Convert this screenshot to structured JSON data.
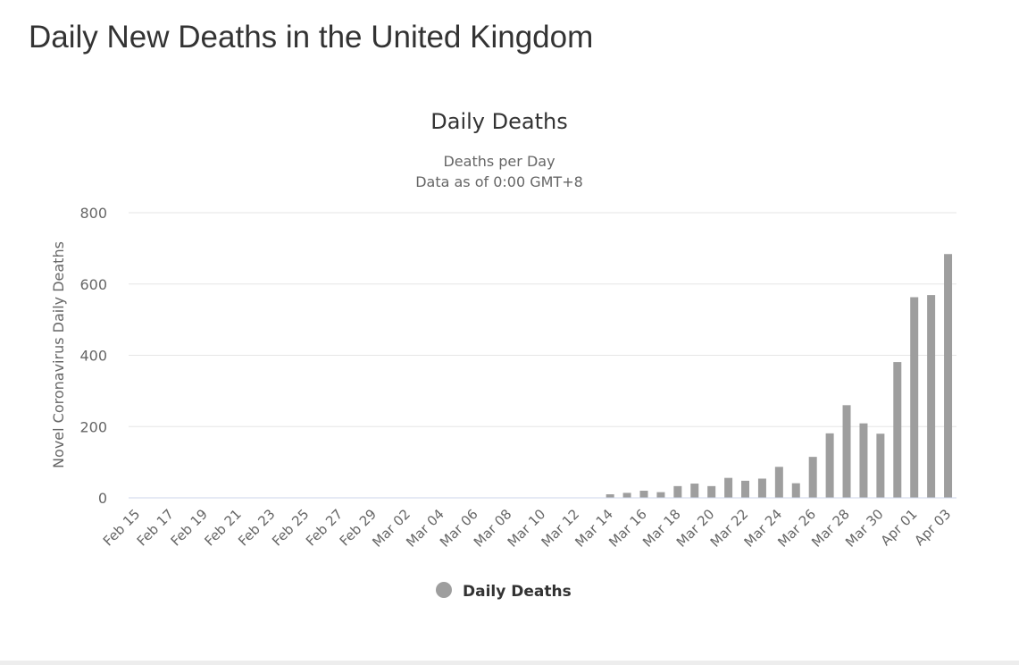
{
  "page": {
    "title": "Daily New Deaths in the United Kingdom"
  },
  "colors": {
    "bar": "#9e9e9e",
    "grid": "#e6e6e6",
    "axis_line": "#ccd6eb",
    "text": "#333333",
    "tick_text": "#666666"
  },
  "chart_data": {
    "type": "bar",
    "title": "Daily Deaths",
    "subtitle_lines": [
      "Deaths per Day",
      "Data as of 0:00 GMT+8"
    ],
    "ylabel": "Novel Coronavirus Daily Deaths",
    "xlabel": "",
    "ylim": [
      0,
      800
    ],
    "yticks": [
      0,
      200,
      400,
      600,
      800
    ],
    "legend": {
      "label": "Daily Deaths",
      "position": "bottom-center"
    },
    "categories": [
      "Feb 15",
      "Feb 16",
      "Feb 17",
      "Feb 18",
      "Feb 19",
      "Feb 20",
      "Feb 21",
      "Feb 22",
      "Feb 23",
      "Feb 24",
      "Feb 25",
      "Feb 26",
      "Feb 27",
      "Feb 28",
      "Feb 29",
      "Mar 01",
      "Mar 02",
      "Mar 03",
      "Mar 04",
      "Mar 05",
      "Mar 06",
      "Mar 07",
      "Mar 08",
      "Mar 09",
      "Mar 10",
      "Mar 11",
      "Mar 12",
      "Mar 13",
      "Mar 14",
      "Mar 15",
      "Mar 16",
      "Mar 17",
      "Mar 18",
      "Mar 19",
      "Mar 20",
      "Mar 21",
      "Mar 22",
      "Mar 23",
      "Mar 24",
      "Mar 25",
      "Mar 26",
      "Mar 27",
      "Mar 28",
      "Mar 29",
      "Mar 30",
      "Mar 31",
      "Apr 01",
      "Apr 02",
      "Apr 03"
    ],
    "tick_labels": [
      "Feb 15",
      "Feb 17",
      "Feb 19",
      "Feb 21",
      "Feb 23",
      "Feb 25",
      "Feb 27",
      "Feb 29",
      "Mar 02",
      "Mar 04",
      "Mar 06",
      "Mar 08",
      "Mar 10",
      "Mar 12",
      "Mar 14",
      "Mar 16",
      "Mar 18",
      "Mar 20",
      "Mar 22",
      "Mar 24",
      "Mar 26",
      "Mar 28",
      "Mar 30",
      "Apr 01",
      "Apr 03"
    ],
    "series": [
      {
        "name": "Daily Deaths",
        "values": [
          0,
          0,
          0,
          0,
          0,
          0,
          0,
          0,
          0,
          0,
          0,
          0,
          0,
          0,
          0,
          0,
          0,
          0,
          0,
          0,
          0,
          0,
          0,
          0,
          0,
          0,
          0,
          0,
          10,
          14,
          20,
          16,
          33,
          40,
          33,
          56,
          48,
          54,
          87,
          41,
          115,
          181,
          260,
          209,
          180,
          381,
          563,
          569,
          684
        ]
      }
    ]
  }
}
